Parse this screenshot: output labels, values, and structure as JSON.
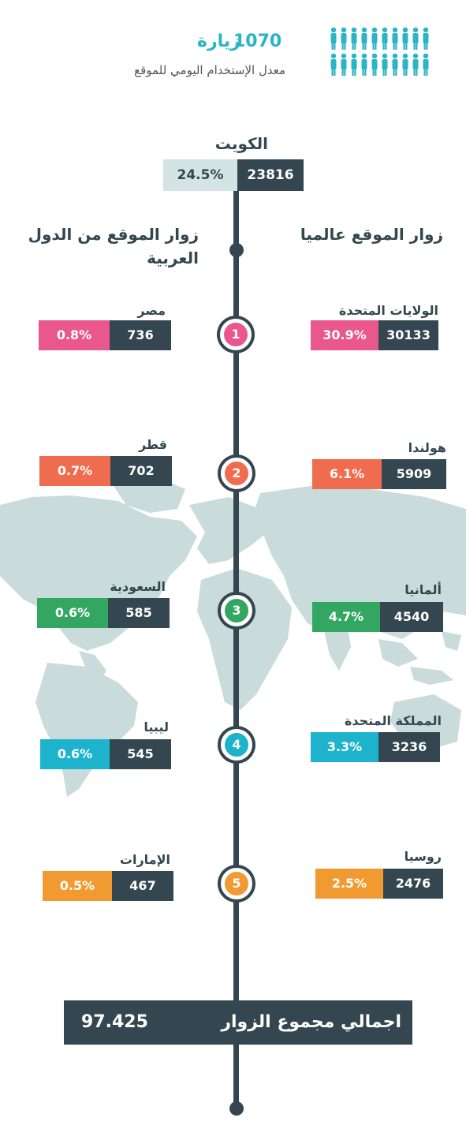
{
  "header": {
    "daily_visits": "1070",
    "visits_word": "زيارة",
    "subtitle": "معدل الإستخدام اليومي للموقع",
    "icon": "people-icon"
  },
  "kuwait": {
    "name": "الكويت",
    "visitors": "23816",
    "percent": "24.5%"
  },
  "columns": {
    "world_title": "زوار الموقع عالميا",
    "arab_title_line1": "زوار الموقع من الدول",
    "arab_title_line2": "العربية"
  },
  "ranks": [
    "1",
    "2",
    "3",
    "4",
    "5"
  ],
  "colors": {
    "rank1": "#e9578c",
    "rank2": "#ef6c4e",
    "rank3": "#33a761",
    "rank4": "#1eb3cc",
    "rank5": "#f19a31",
    "dark": "#34464f",
    "map": "#c9dbdb"
  },
  "world": [
    {
      "name": "الولايات المتحدة",
      "visitors": "30133",
      "percent": "30.9%"
    },
    {
      "name": "هولندا",
      "visitors": "5909",
      "percent": "6.1%"
    },
    {
      "name": "ألمانيا",
      "visitors": "4540",
      "percent": "4.7%"
    },
    {
      "name": "المملكة المتحدة",
      "visitors": "3236",
      "percent": "3.3%"
    },
    {
      "name": "روسيا",
      "visitors": "2476",
      "percent": "2.5%"
    }
  ],
  "arab": [
    {
      "name": "مصر",
      "visitors": "736",
      "percent": "0.8%"
    },
    {
      "name": "قطر",
      "visitors": "702",
      "percent": "0.7%"
    },
    {
      "name": "السعودية",
      "visitors": "585",
      "percent": "0.6%"
    },
    {
      "name": "ليبيا",
      "visitors": "545",
      "percent": "0.6%"
    },
    {
      "name": "الإمارات",
      "visitors": "467",
      "percent": "0.5%"
    }
  ],
  "total": {
    "label": "اجمالي مجموع الزوار",
    "value": "97.425"
  }
}
